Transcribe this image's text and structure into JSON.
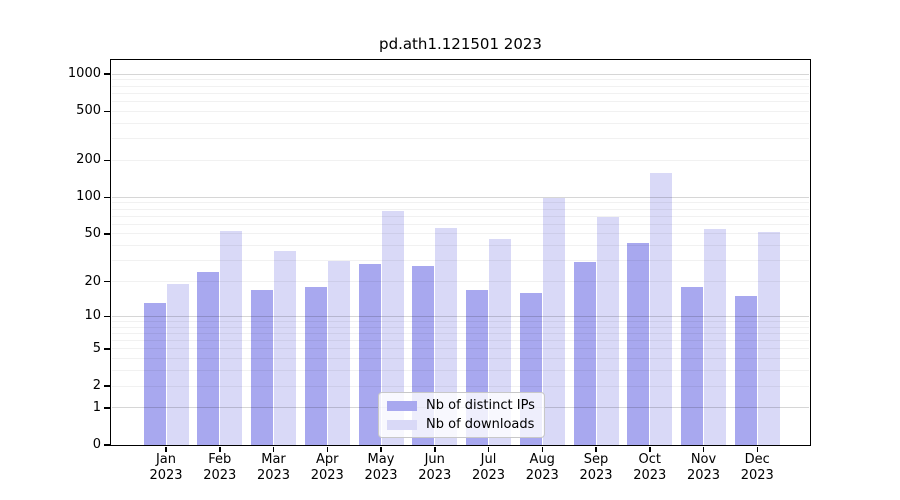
{
  "title": "pd.ath1.121501 2023",
  "colors": {
    "distinct_ips": "#a8a8ef",
    "downloads": "#d9d9f7",
    "grid_major": "rgba(0,0,0,0.16)",
    "grid_minor": "rgba(0,0,0,0.055)",
    "axis": "#000000",
    "text": "#000000",
    "legend_border": "#c8c8c8",
    "legend_bg": "rgba(255,255,255,0.8)"
  },
  "legend": {
    "items": [
      "Nb of distinct IPs",
      "Nb of downloads"
    ],
    "position": "lower center"
  },
  "chart_data": {
    "type": "bar",
    "title": "pd.ath1.121501 2023",
    "month_labels": [
      "Jan",
      "Feb",
      "Mar",
      "Apr",
      "May",
      "Jun",
      "Jul",
      "Aug",
      "Sep",
      "Oct",
      "Nov",
      "Dec"
    ],
    "year_label": "2023",
    "series": [
      {
        "name": "Nb of distinct IPs",
        "color": "#a8a8ef",
        "values": [
          13,
          24,
          17,
          18,
          28,
          27,
          17,
          16,
          29,
          42,
          18,
          15
        ]
      },
      {
        "name": "Nb of downloads",
        "color": "#d9d9f7",
        "values": [
          19,
          53,
          36,
          30,
          77,
          56,
          45,
          98,
          69,
          158,
          55,
          52
        ]
      }
    ],
    "yscale": "log10(1+y)",
    "ytick_values": [
      0,
      1,
      2,
      5,
      10,
      20,
      50,
      100,
      200,
      500,
      1000
    ],
    "ytick_labels": [
      "0",
      "1",
      "2",
      "5",
      "10",
      "20",
      "50",
      "100",
      "200",
      "500",
      "1000"
    ],
    "minor_grid_values": [
      2,
      3,
      4,
      5,
      6,
      7,
      8,
      9,
      20,
      30,
      40,
      50,
      60,
      70,
      80,
      90,
      200,
      300,
      400,
      500,
      600,
      700,
      800,
      900
    ],
    "major_grid_values": [
      1,
      10,
      100,
      1000
    ],
    "ylim": [
      0,
      1300
    ],
    "grid": true,
    "grid_above_bars": true,
    "xlabel": "",
    "ylabel": ""
  }
}
